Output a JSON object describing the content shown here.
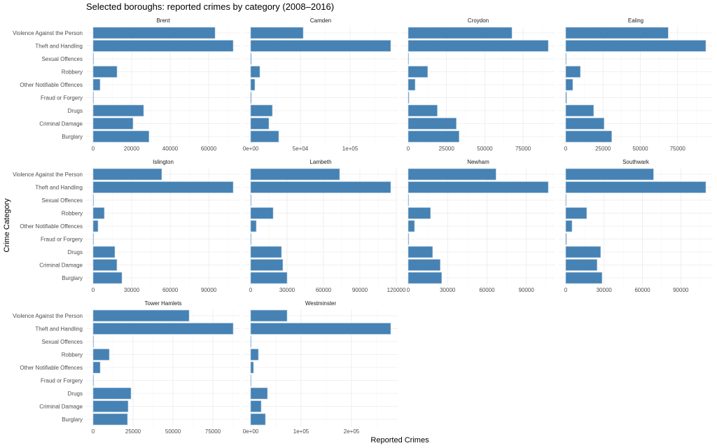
{
  "chart_data": {
    "type": "bar",
    "orientation": "horizontal",
    "title": "Selected boroughs: reported crimes by category (2008–2016)",
    "xlabel": "Reported Crimes",
    "ylabel": "Crime Category",
    "grid": true,
    "facet_scales": "free_x",
    "bar_color": "#4682B4",
    "categories": [
      "Violence Against the Person",
      "Theft and Handling",
      "Sexual Offences",
      "Robbery",
      "Other Notifiable Offences",
      "Fraud or Forgery",
      "Drugs",
      "Criminal Damage",
      "Burglary"
    ],
    "panels": [
      {
        "name": "Brent",
        "values": [
          63300,
          72700,
          100,
          12400,
          3600,
          100,
          26200,
          20700,
          29000
        ],
        "ticks": [
          0,
          20000,
          40000,
          60000
        ],
        "tick_labels": [
          "0",
          "20000",
          "40000",
          "60000"
        ]
      },
      {
        "name": "Camden",
        "values": [
          52800,
          140800,
          700,
          9200,
          4200,
          700,
          21800,
          18300,
          28200
        ],
        "ticks": [
          0,
          50000,
          100000
        ],
        "tick_labels": [
          "0e+00",
          "5e+04",
          "1e+05"
        ]
      },
      {
        "name": "Croydon",
        "values": [
          67700,
          91400,
          100,
          12700,
          4500,
          500,
          19000,
          31400,
          33200
        ],
        "ticks": [
          0,
          25000,
          50000,
          75000
        ],
        "tick_labels": [
          "0",
          "25000",
          "50000",
          "75000"
        ]
      },
      {
        "name": "Ealing",
        "values": [
          68700,
          93900,
          100,
          9800,
          4700,
          600,
          18700,
          25700,
          30800
        ],
        "ticks": [
          0,
          25000,
          50000,
          75000
        ],
        "tick_labels": [
          "0",
          "25000",
          "50000",
          "75000"
        ]
      },
      {
        "name": "Islington",
        "values": [
          53400,
          109000,
          100,
          8700,
          3800,
          100,
          16900,
          18500,
          22400
        ],
        "ticks": [
          0,
          30000,
          60000,
          90000
        ],
        "tick_labels": [
          "0",
          "30000",
          "60000",
          "90000"
        ]
      },
      {
        "name": "Lambeth",
        "values": [
          73300,
          115400,
          500,
          18500,
          4600,
          500,
          25400,
          26500,
          30000
        ],
        "ticks": [
          0,
          30000,
          60000,
          90000,
          120000
        ],
        "tick_labels": [
          "0",
          "30000",
          "60000",
          "90000",
          "120000"
        ]
      },
      {
        "name": "Newham",
        "values": [
          66900,
          106700,
          100,
          17000,
          4800,
          500,
          18600,
          24400,
          25500
        ],
        "ticks": [
          0,
          30000,
          60000,
          90000
        ],
        "tick_labels": [
          "0",
          "30000",
          "60000",
          "90000"
        ]
      },
      {
        "name": "Southwark",
        "values": [
          68700,
          109600,
          100,
          16400,
          4900,
          600,
          27300,
          24500,
          28400
        ],
        "ticks": [
          0,
          30000,
          60000,
          90000
        ],
        "tick_labels": [
          "0",
          "30000",
          "60000",
          "90000"
        ]
      },
      {
        "name": "Tower Hamlets",
        "values": [
          60100,
          87700,
          100,
          10100,
          4400,
          100,
          23700,
          21900,
          21500
        ],
        "ticks": [
          0,
          25000,
          50000,
          75000
        ],
        "tick_labels": [
          "0",
          "25000",
          "50000",
          "75000"
        ]
      },
      {
        "name": "Westminster",
        "values": [
          72200,
          277800,
          100,
          15300,
          5600,
          700,
          33300,
          20800,
          29200
        ],
        "ticks": [
          0,
          100000,
          200000
        ],
        "tick_labels": [
          "0e+00",
          "1e+05",
          "2e+05"
        ]
      }
    ]
  }
}
